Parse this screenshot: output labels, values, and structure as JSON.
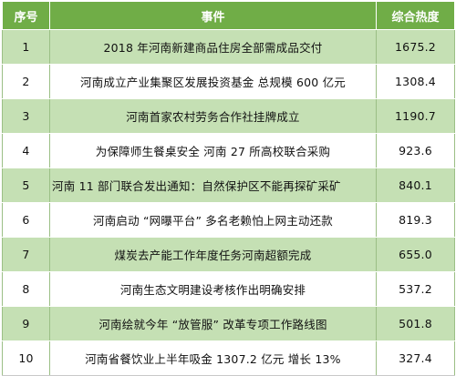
{
  "header": {
    "rank": "序号",
    "event": "事件",
    "heat": "综合热度"
  },
  "colors": {
    "header_bg": "#70ad47",
    "odd_row_bg": "#c5e0b4",
    "even_row_bg": "#ffffff"
  },
  "rows": [
    {
      "rank": "1",
      "event": "2018 年河南新建商品住房全部需成品交付",
      "heat": "1675.2"
    },
    {
      "rank": "2",
      "event": "河南成立产业集聚区发展投资基金  总规模 600 亿元",
      "heat": "1308.4"
    },
    {
      "rank": "3",
      "event": "河南首家农村劳务合作社挂牌成立",
      "heat": "1190.7"
    },
    {
      "rank": "4",
      "event": "为保障师生餐桌安全  河南 27 所高校联合采购",
      "heat": "923.6"
    },
    {
      "rank": "5",
      "event": "河南 11 部门联合发出通知：自然保护区不能再探矿采矿",
      "heat": "840.1"
    },
    {
      "rank": "6",
      "event": "河南启动 “网曝平台”   多名老赖怕上网主动还款",
      "heat": "819.3"
    },
    {
      "rank": "7",
      "event": "煤炭去产能工作年度任务河南超额完成",
      "heat": "655.0"
    },
    {
      "rank": "8",
      "event": "河南生态文明建设考核作出明确安排",
      "heat": "537.2"
    },
    {
      "rank": "9",
      "event": "河南绘就今年 “放管服” 改革专项工作路线图",
      "heat": "501.8"
    },
    {
      "rank": "10",
      "event": "河南省餐饮业上半年吸金 1307.2 亿元  增长 13%",
      "heat": "327.4"
    }
  ]
}
